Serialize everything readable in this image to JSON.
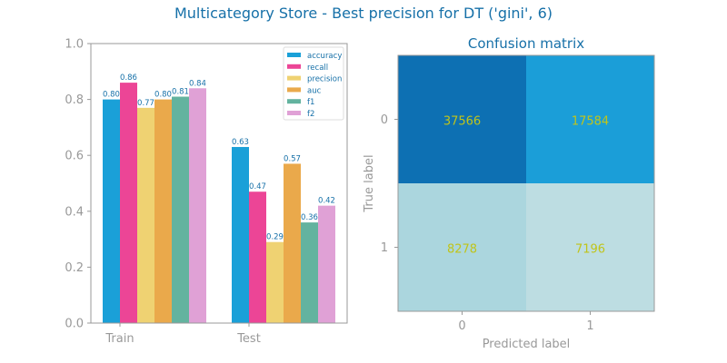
{
  "figure_title": "Multicategory Store - Best precision for DT ('gini', 6)",
  "colors": {
    "title": "#1670a8",
    "axis": "#999999",
    "tick_text": "#999999",
    "bar_label": "#1670a8",
    "cm_text": "#c0c41a"
  },
  "chart_data": [
    {
      "type": "bar",
      "title": "",
      "categories": [
        "Train",
        "Test"
      ],
      "ylim": [
        0,
        1.0
      ],
      "yticks": [
        "0.0",
        "0.2",
        "0.4",
        "0.6",
        "0.8",
        "1.0"
      ],
      "legend": "top-right",
      "series": [
        {
          "name": "accuracy",
          "color": "#1aa0d8",
          "values": [
            0.8,
            0.63
          ],
          "labels": [
            "0.80",
            "0.63"
          ]
        },
        {
          "name": "recall",
          "color": "#ec4596",
          "values": [
            0.86,
            0.47
          ],
          "labels": [
            "0.86",
            "0.47"
          ]
        },
        {
          "name": "precision",
          "color": "#efd272",
          "values": [
            0.77,
            0.29
          ],
          "labels": [
            "0.77",
            "0.29"
          ]
        },
        {
          "name": "auc",
          "color": "#eaa94b",
          "values": [
            0.8,
            0.57
          ],
          "labels": [
            "0.80",
            "0.57"
          ]
        },
        {
          "name": "f1",
          "color": "#63b39f",
          "values": [
            0.81,
            0.36
          ],
          "labels": [
            "0.81",
            "0.36"
          ]
        },
        {
          "name": "f2",
          "color": "#e0a1d6",
          "values": [
            0.84,
            0.42
          ],
          "labels": [
            "0.84",
            "0.42"
          ]
        }
      ]
    },
    {
      "type": "heatmap",
      "title": "Confusion matrix",
      "xlabel": "Predicted label",
      "ylabel": "True label",
      "x_ticks": [
        "0",
        "1"
      ],
      "y_ticks": [
        "0",
        "1"
      ],
      "cells": [
        [
          {
            "value": 37566,
            "label": "37566",
            "color": "#0d70b3"
          },
          {
            "value": 17584,
            "label": "17584",
            "color": "#1b9ed8"
          }
        ],
        [
          {
            "value": 8278,
            "label": "8278",
            "color": "#abd6de"
          },
          {
            "value": 7196,
            "label": "7196",
            "color": "#bddde2"
          }
        ]
      ]
    }
  ]
}
